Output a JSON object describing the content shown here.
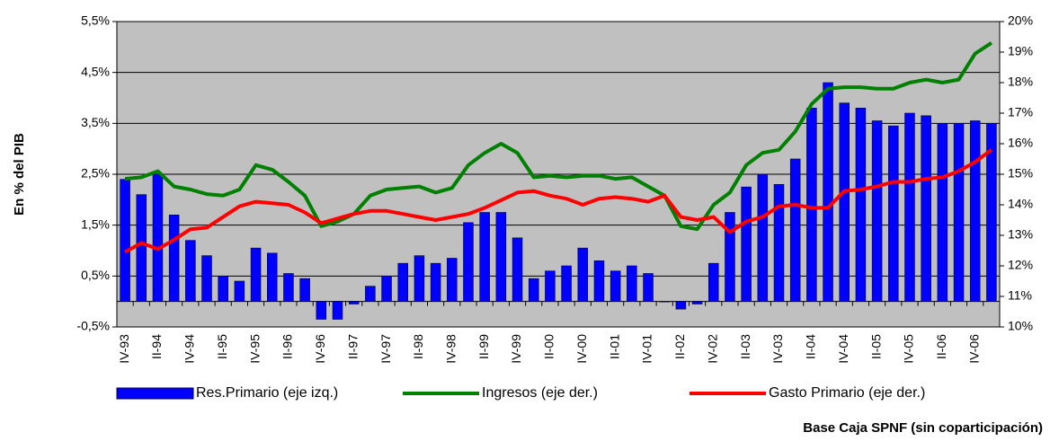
{
  "chart_data": {
    "type": "bar_line_dual",
    "y_axis_label": "En % del PIB",
    "note": "Base Caja SPNF (sin coparticipación)",
    "categories": [
      "IV-93",
      null,
      "II-94",
      null,
      "IV-94",
      null,
      "II-95",
      null,
      "IV-95",
      null,
      "II-96",
      null,
      "IV-96",
      null,
      "II-97",
      null,
      "IV-97",
      null,
      "II-98",
      null,
      "IV-98",
      null,
      "II-99",
      null,
      "IV-99",
      null,
      "II-00",
      null,
      "IV-00",
      null,
      "II-01",
      null,
      "IV-01",
      null,
      "II-02",
      null,
      "IV-02",
      null,
      "II-03",
      null,
      "IV-03",
      null,
      "II-04",
      null,
      "IV-04",
      null,
      "II-05",
      null,
      "IV-05",
      null,
      "II-06",
      null,
      "IV-06",
      null
    ],
    "series": [
      {
        "name": "Res.Primario (eje izq.)",
        "type": "bar",
        "color": "#0000ff",
        "values": [
          2.4,
          2.1,
          2.5,
          1.7,
          1.2,
          0.9,
          0.5,
          0.4,
          1.05,
          0.95,
          0.55,
          0.45,
          -0.35,
          -0.35,
          -0.05,
          0.3,
          0.5,
          0.75,
          0.9,
          0.75,
          0.85,
          1.55,
          1.75,
          1.75,
          1.25,
          0.45,
          0.6,
          0.7,
          1.05,
          0.8,
          0.6,
          0.7,
          0.55,
          0.0,
          -0.15,
          -0.05,
          0.75,
          1.75,
          2.25,
          2.5,
          2.3,
          2.8,
          3.8,
          4.3,
          3.9,
          3.8,
          3.55,
          3.45,
          3.7,
          3.65,
          3.5,
          3.5,
          3.55,
          3.5
        ]
      },
      {
        "name": "Ingresos (eje der.)",
        "type": "line",
        "axis": "y2",
        "color": "#008000",
        "values": [
          14.85,
          14.9,
          15.1,
          14.6,
          14.5,
          14.35,
          14.3,
          14.5,
          15.3,
          15.15,
          14.75,
          14.3,
          13.3,
          13.45,
          13.7,
          14.3,
          14.5,
          14.55,
          14.6,
          14.4,
          14.55,
          15.3,
          15.7,
          16.0,
          15.7,
          14.9,
          14.95,
          14.9,
          14.95,
          14.95,
          14.85,
          14.9,
          14.6,
          14.3,
          13.3,
          13.2,
          14.0,
          14.4,
          15.3,
          15.7,
          15.8,
          16.4,
          17.3,
          17.8,
          17.85,
          17.85,
          17.8,
          17.8,
          18.0,
          18.1,
          18.0,
          18.1,
          18.95,
          19.3
        ]
      },
      {
        "name": "Gasto Primario (eje der.)",
        "type": "line",
        "axis": "y2",
        "color": "#ff0000",
        "values": [
          12.45,
          12.75,
          12.55,
          12.85,
          13.2,
          13.25,
          13.6,
          13.95,
          14.1,
          14.05,
          14.0,
          13.75,
          13.4,
          13.55,
          13.7,
          13.8,
          13.8,
          13.7,
          13.6,
          13.5,
          13.6,
          13.7,
          13.9,
          14.15,
          14.4,
          14.45,
          14.3,
          14.2,
          14.0,
          14.2,
          14.25,
          14.2,
          14.1,
          14.3,
          13.6,
          13.5,
          13.6,
          13.1,
          13.45,
          13.6,
          13.95,
          14.0,
          13.9,
          13.9,
          14.45,
          14.5,
          14.6,
          14.75,
          14.75,
          14.85,
          14.9,
          15.1,
          15.4,
          15.8
        ]
      }
    ],
    "ylim": [
      -0.5,
      5.5
    ],
    "yticks": [
      {
        "value": -0.5,
        "label": "-0,5%"
      },
      {
        "value": 0.5,
        "label": "0,5%"
      },
      {
        "value": 1.5,
        "label": "1,5%"
      },
      {
        "value": 2.5,
        "label": "2,5%"
      },
      {
        "value": 3.5,
        "label": "3,5%"
      },
      {
        "value": 4.5,
        "label": "4,5%"
      },
      {
        "value": 5.5,
        "label": "5,5%"
      }
    ],
    "y2lim": [
      10,
      20
    ],
    "y2ticks": [
      {
        "value": 10,
        "label": "10%"
      },
      {
        "value": 11,
        "label": "11%"
      },
      {
        "value": 12,
        "label": "12%"
      },
      {
        "value": 13,
        "label": "13%"
      },
      {
        "value": 14,
        "label": "14%"
      },
      {
        "value": 15,
        "label": "15%"
      },
      {
        "value": 16,
        "label": "16%"
      },
      {
        "value": 17,
        "label": "17%"
      },
      {
        "value": 18,
        "label": "18%"
      },
      {
        "value": 19,
        "label": "19%"
      },
      {
        "value": 20,
        "label": "20%"
      }
    ],
    "grid": true,
    "plot_background": "#c0c0c0"
  }
}
